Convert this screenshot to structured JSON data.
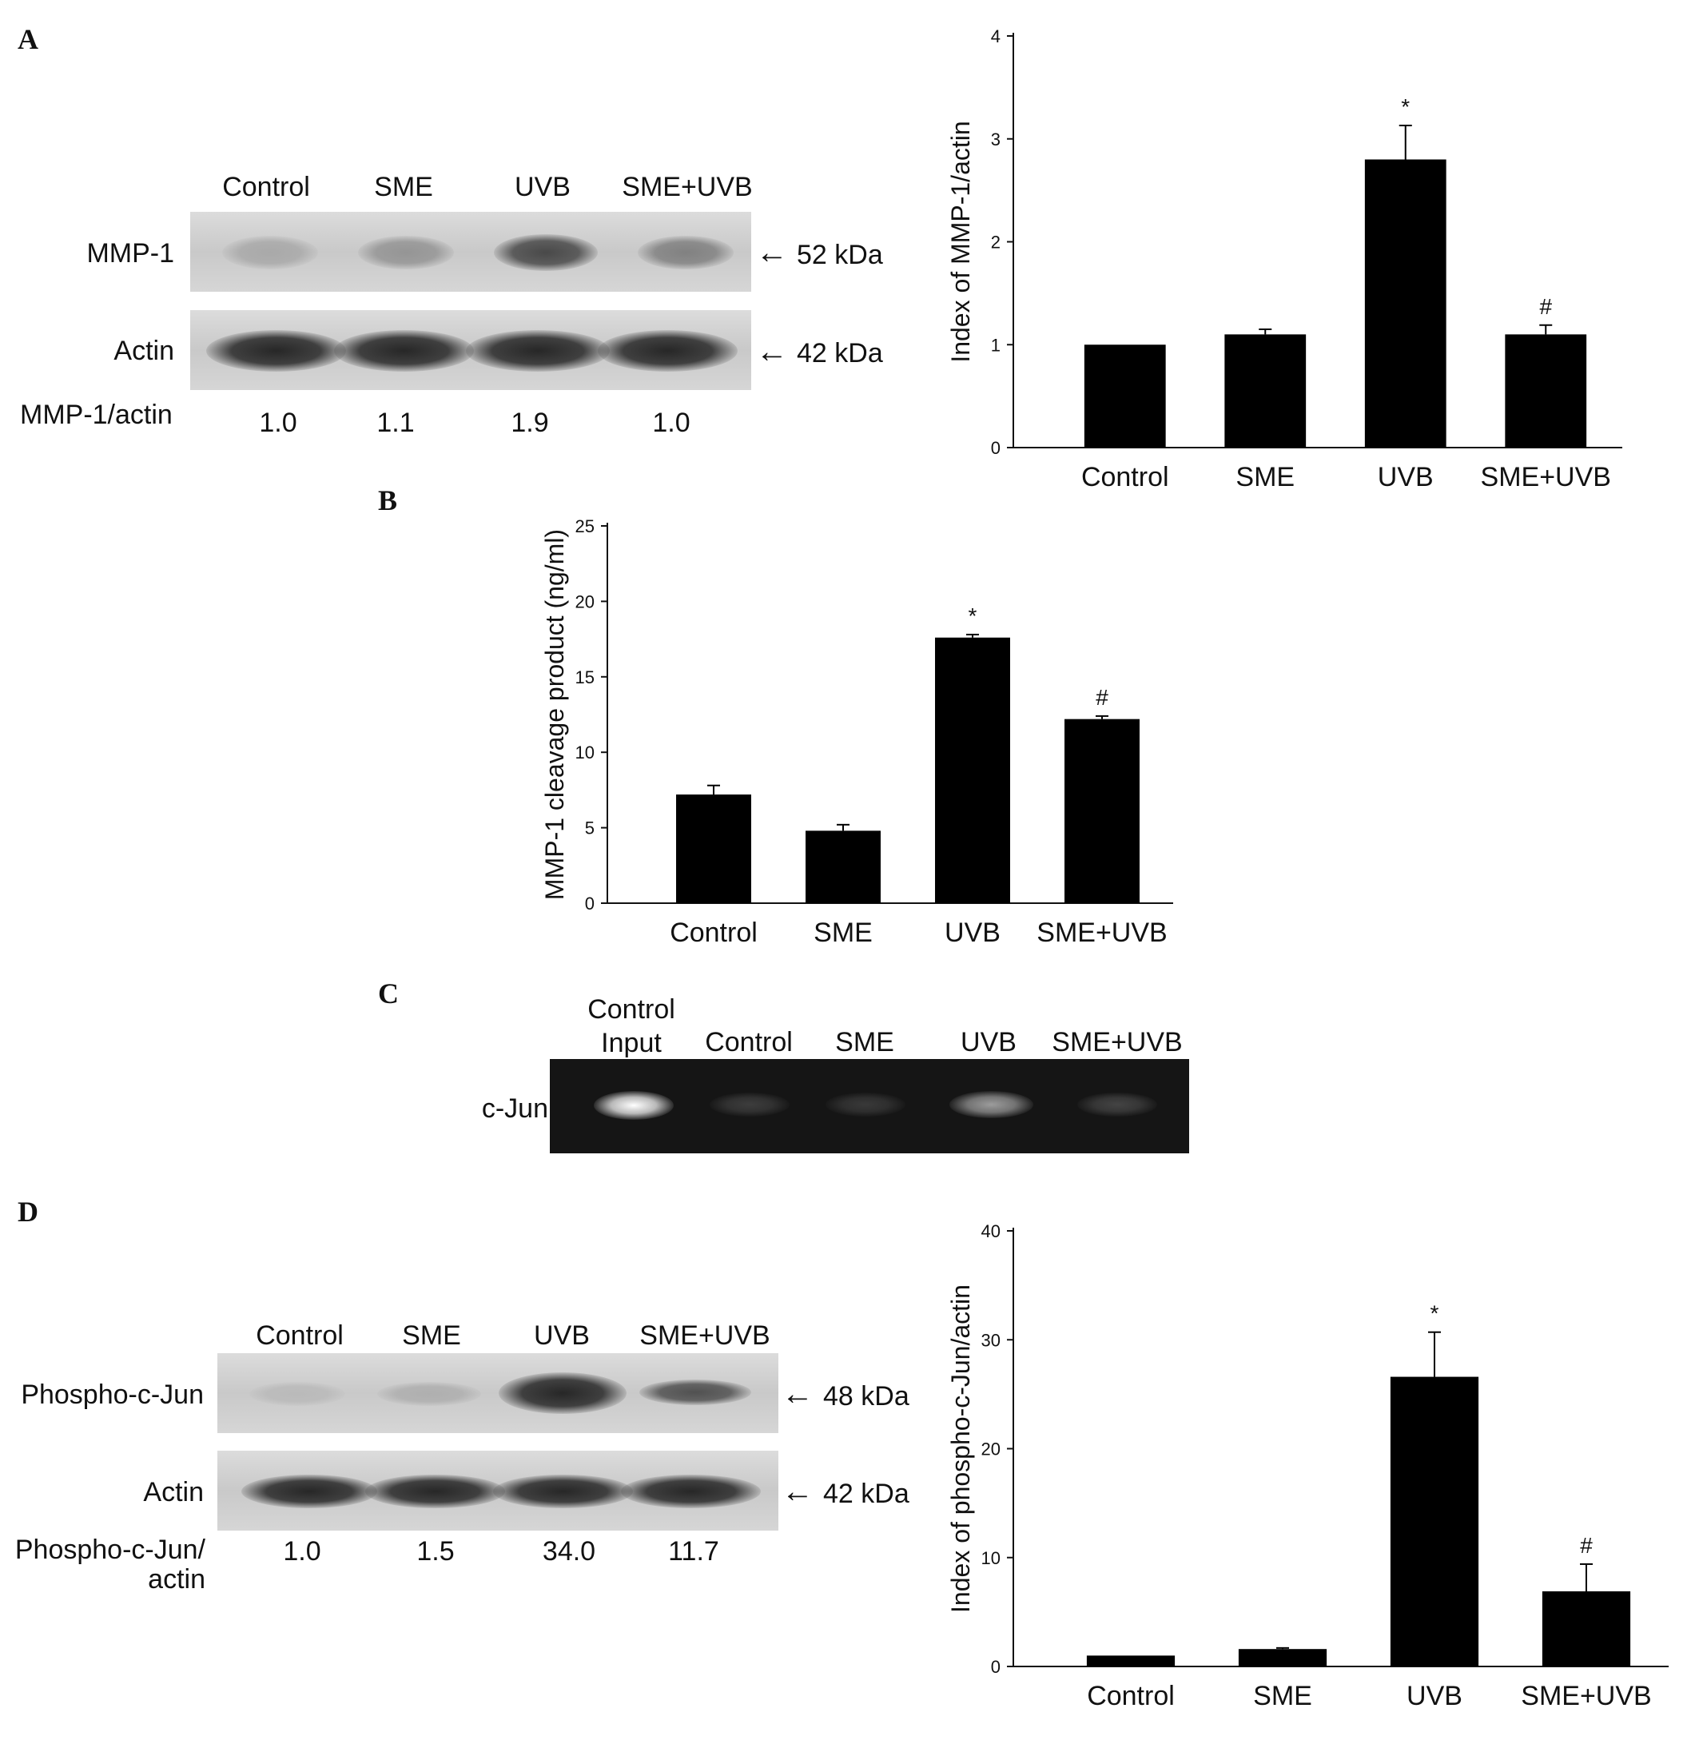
{
  "panels": {
    "A": {
      "label": "A",
      "blot": {
        "lanes": [
          "Control",
          "SME",
          "UVB",
          "SME+UVB"
        ],
        "rows": [
          {
            "name": "MMP-1",
            "size": "52 kDa",
            "intensities": [
              0.18,
              0.3,
              0.75,
              0.42
            ]
          },
          {
            "name": "Actin",
            "size": "42 kDa",
            "intensities": [
              0.95,
              0.95,
              0.95,
              0.95
            ]
          }
        ],
        "ratio_label": "MMP-1/actin",
        "ratios": [
          "1.0",
          "1.1",
          "1.9",
          "1.0"
        ]
      }
    },
    "B": {
      "label": "B"
    },
    "C": {
      "label": "C",
      "gel": {
        "row_label": "c-Jun",
        "lanes": [
          "Control\nInput",
          "Control",
          "SME",
          "UVB",
          "SME+UVB"
        ],
        "intensities": [
          1.0,
          0.12,
          0.1,
          0.55,
          0.15
        ]
      }
    },
    "D": {
      "label": "D",
      "blot": {
        "lanes": [
          "Control",
          "SME",
          "UVB",
          "SME+UVB"
        ],
        "rows": [
          {
            "name": "Phospho-c-Jun",
            "size": "48 kDa",
            "intensities": [
              0.08,
              0.15,
              0.95,
              0.7
            ]
          },
          {
            "name": "Actin",
            "size": "42 kDa",
            "intensities": [
              0.95,
              0.95,
              0.95,
              0.95
            ]
          }
        ],
        "ratio_label_line1": "Phospho-c-Jun/",
        "ratio_label_line2": "actin",
        "ratios": [
          "1.0",
          "1.5",
          "34.0",
          "11.7"
        ]
      }
    }
  },
  "arrow_glyph": "←",
  "chart_data": [
    {
      "type": "bar",
      "panel": "A",
      "categories": [
        "Control",
        "SME",
        "UVB",
        "SME+UVB"
      ],
      "values": [
        1.0,
        1.1,
        2.8,
        1.1
      ],
      "errors": [
        0,
        0.05,
        0.33,
        0.09
      ],
      "annotations": [
        "",
        "",
        "*",
        "#"
      ],
      "ylabel": "Index of MMP-1/actin",
      "ylim": [
        0,
        4
      ],
      "yticks": [
        0,
        1,
        2,
        3,
        4
      ]
    },
    {
      "type": "bar",
      "panel": "B",
      "categories": [
        "Control",
        "SME",
        "UVB",
        "SME+UVB"
      ],
      "values": [
        7.2,
        4.8,
        17.6,
        12.2
      ],
      "errors": [
        0.6,
        0.4,
        0.2,
        0.2
      ],
      "annotations": [
        "",
        "",
        "*",
        "#"
      ],
      "ylabel": "MMP-1 cleavage product (ng/ml)",
      "ylim": [
        0,
        25
      ],
      "yticks": [
        0,
        5,
        10,
        15,
        20,
        25
      ]
    },
    {
      "type": "bar",
      "panel": "D",
      "categories": [
        "Control",
        "SME",
        "UVB",
        "SME+UVB"
      ],
      "values": [
        1.0,
        1.6,
        26.6,
        6.9
      ],
      "errors": [
        0,
        0.1,
        4.1,
        2.5
      ],
      "annotations": [
        "",
        "",
        "*",
        "#"
      ],
      "ylabel": "Index of phospho-c-Jun/actin",
      "ylim": [
        0,
        40
      ],
      "yticks": [
        0,
        10,
        20,
        30,
        40
      ]
    }
  ]
}
